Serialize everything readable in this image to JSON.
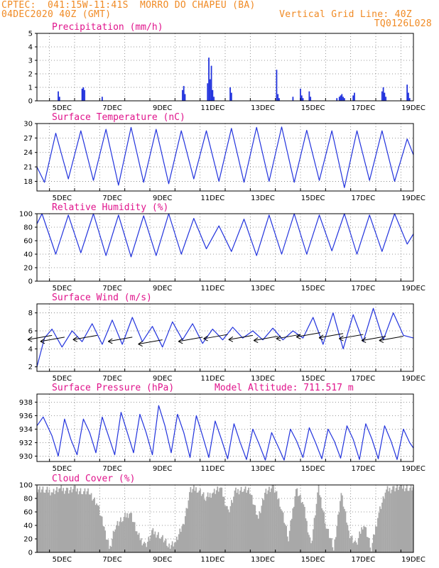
{
  "header": {
    "line1": "CPTEC:  041:15W-11:41S  MORRO DO CHAPEU (BA)",
    "line2": "04DEC2020 40Z (GMT)",
    "grid_note": "Vertical Grid Line: 40Z",
    "code": "TQ0126L028"
  },
  "colors": {
    "header": "#f08a24",
    "title": "#e0148c",
    "line": "#2233dd",
    "cloud": "#a8a8a8",
    "wind_arrow": "#000000"
  },
  "chart_data": [
    {
      "type": "bar",
      "title": "Precipitation (mm/h)",
      "ylim": [
        0,
        5
      ],
      "yticks": [
        0,
        1,
        2,
        3,
        4,
        5
      ],
      "x_ticks": [
        "5DEC",
        "7DEC",
        "9DEC",
        "11DEC",
        "13DEC",
        "15DEC",
        "17DEC",
        "19DEC"
      ],
      "grid": true,
      "x": [
        4.85,
        4.9,
        5.8,
        5.85,
        5.9,
        6.6,
        9.8,
        9.85,
        9.9,
        10.8,
        10.85,
        10.9,
        10.95,
        11.0,
        11.05,
        11.7,
        11.75,
        13.55,
        13.6,
        13.65,
        14.2,
        14.5,
        14.55,
        14.6,
        14.85,
        14.9,
        15.95,
        16.05,
        16.1,
        16.15,
        16.2,
        16.25,
        16.6,
        16.65,
        17.75,
        17.8,
        17.85,
        17.9,
        18.75,
        18.8,
        18.85
      ],
      "values": [
        0.7,
        0.3,
        0.9,
        1.0,
        0.8,
        0.3,
        0.8,
        1.1,
        0.5,
        1.3,
        3.2,
        1.6,
        2.6,
        0.8,
        0.3,
        1.0,
        0.6,
        2.3,
        0.5,
        0.2,
        0.3,
        0.9,
        0.4,
        0.2,
        0.7,
        0.3,
        0.2,
        0.3,
        0.4,
        0.5,
        0.3,
        0.2,
        0.4,
        0.6,
        0.7,
        1.0,
        0.6,
        0.3,
        1.2,
        0.6,
        0.2
      ]
    },
    {
      "type": "line",
      "title": "Surface Temperature (nC)",
      "ylim": [
        16,
        30
      ],
      "yticks": [
        18,
        21,
        24,
        27,
        30
      ],
      "x_ticks": [
        "5DEC",
        "7DEC",
        "9DEC",
        "11DEC",
        "13DEC",
        "15DEC",
        "17DEC",
        "19DEC"
      ],
      "grid": true,
      "x": [
        4.0,
        4.3,
        4.75,
        5.25,
        5.75,
        6.25,
        6.75,
        7.25,
        7.75,
        8.25,
        8.75,
        9.25,
        9.75,
        10.25,
        10.75,
        11.25,
        11.75,
        12.25,
        12.75,
        13.25,
        13.75,
        14.25,
        14.75,
        15.25,
        15.75,
        16.25,
        16.75,
        17.25,
        17.75,
        18.25,
        18.75,
        19.0
      ],
      "values": [
        21,
        17.8,
        28,
        18.5,
        28.5,
        18.2,
        28.8,
        17.2,
        29.2,
        17.8,
        28.8,
        17.5,
        28.5,
        18.5,
        28.5,
        18.0,
        29.0,
        17.8,
        29.2,
        18.0,
        29.3,
        17.8,
        28.6,
        18.2,
        28.5,
        16.7,
        28.5,
        18.2,
        28.5,
        18.0,
        26.8,
        23.5
      ]
    },
    {
      "type": "line",
      "title": "Relative Humidity (%)",
      "ylim": [
        0,
        100
      ],
      "yticks": [
        0,
        20,
        40,
        60,
        80,
        100
      ],
      "x_ticks": [
        "5DEC",
        "7DEC",
        "9DEC",
        "11DEC",
        "13DEC",
        "15DEC",
        "17DEC",
        "19DEC"
      ],
      "grid": true,
      "x": [
        4.0,
        4.2,
        4.75,
        5.25,
        5.75,
        6.25,
        6.75,
        7.25,
        7.75,
        8.25,
        8.75,
        9.25,
        9.75,
        10.25,
        10.75,
        11.25,
        11.75,
        12.25,
        12.75,
        13.25,
        13.75,
        14.25,
        14.75,
        15.25,
        15.75,
        16.25,
        16.75,
        17.25,
        17.75,
        18.25,
        18.75,
        19.0
      ],
      "values": [
        85,
        100,
        40,
        98,
        42,
        100,
        38,
        98,
        36,
        97,
        38,
        100,
        40,
        93,
        48,
        82,
        44,
        92,
        38,
        98,
        40,
        100,
        40,
        98,
        45,
        100,
        40,
        98,
        44,
        100,
        55,
        70
      ]
    },
    {
      "type": "line",
      "title": "Surface Wind (m/s)",
      "ylim": [
        1.5,
        9
      ],
      "yticks": [
        2,
        4,
        6,
        8
      ],
      "x_ticks": [
        "5DEC",
        "7DEC",
        "9DEC",
        "11DEC",
        "13DEC",
        "15DEC",
        "17DEC",
        "19DEC"
      ],
      "grid": true,
      "x": [
        4.0,
        4.3,
        4.6,
        5.0,
        5.4,
        5.8,
        6.2,
        6.6,
        7.0,
        7.4,
        7.8,
        8.2,
        8.6,
        9.0,
        9.4,
        9.8,
        10.2,
        10.6,
        11.0,
        11.4,
        11.8,
        12.2,
        12.6,
        13.0,
        13.4,
        13.8,
        14.2,
        14.6,
        15.0,
        15.4,
        15.8,
        16.2,
        16.6,
        17.0,
        17.4,
        17.8,
        18.2,
        18.6,
        19.0
      ],
      "values": [
        2.0,
        5.2,
        6.2,
        4.2,
        6.0,
        4.8,
        6.8,
        4.5,
        7.2,
        4.5,
        7.5,
        4.8,
        6.5,
        4.2,
        7.0,
        5.0,
        6.8,
        4.6,
        6.2,
        5.0,
        6.4,
        5.2,
        6.0,
        5.0,
        6.3,
        5.0,
        6.0,
        5.2,
        7.5,
        4.5,
        8.0,
        4.0,
        7.8,
        4.8,
        8.5,
        5.0,
        8.0,
        5.5,
        5.2
      ],
      "arrow_x": [
        4.6,
        5.1,
        6.4,
        7.8,
        9.0,
        10.6,
        11.6,
        12.6,
        13.6,
        14.5,
        15.3,
        16.2,
        17.0,
        17.9,
        18.6
      ],
      "arrow_y": [
        5.5,
        5.3,
        5.5,
        5.3,
        5.0,
        5.3,
        5.6,
        5.5,
        5.4,
        5.6,
        5.8,
        5.7,
        5.6,
        5.4,
        5.4
      ]
    },
    {
      "type": "line",
      "title": "Surface Pressure (hPa)",
      "subtitle": "Model Altitude: 711.517 m",
      "ylim": [
        929.2,
        939.2
      ],
      "yticks": [
        930,
        932,
        934,
        936,
        938
      ],
      "x_ticks": [
        "5DEC",
        "7DEC",
        "9DEC",
        "11DEC",
        "13DEC",
        "15DEC",
        "17DEC",
        "19DEC"
      ],
      "grid": true,
      "x": [
        4.0,
        4.25,
        4.6,
        4.85,
        5.1,
        5.35,
        5.6,
        5.85,
        6.1,
        6.35,
        6.6,
        6.85,
        7.1,
        7.35,
        7.6,
        7.85,
        8.1,
        8.35,
        8.6,
        8.85,
        9.1,
        9.35,
        9.6,
        9.85,
        10.1,
        10.35,
        10.6,
        10.85,
        11.1,
        11.35,
        11.6,
        11.85,
        12.1,
        12.35,
        12.6,
        12.85,
        13.1,
        13.35,
        13.6,
        13.85,
        14.1,
        14.35,
        14.6,
        14.85,
        15.1,
        15.35,
        15.6,
        15.85,
        16.1,
        16.35,
        16.6,
        16.85,
        17.1,
        17.35,
        17.6,
        17.85,
        18.1,
        18.35,
        18.6,
        18.85,
        19.0
      ],
      "values": [
        934.5,
        935.8,
        933.0,
        930.0,
        935.5,
        932.5,
        930.2,
        935.5,
        933.5,
        930.5,
        935.8,
        933.0,
        930.2,
        936.5,
        933.5,
        930.5,
        936.2,
        933.5,
        930.2,
        937.5,
        934.5,
        930.5,
        936.2,
        933.5,
        929.8,
        936.0,
        933.0,
        929.8,
        935.2,
        932.5,
        929.6,
        934.8,
        932.0,
        929.5,
        934.0,
        931.8,
        929.4,
        933.5,
        931.5,
        929.4,
        934.0,
        932.2,
        929.8,
        934.2,
        932.0,
        929.6,
        934.0,
        932.2,
        929.7,
        934.5,
        932.5,
        929.5,
        934.8,
        932.5,
        929.6,
        934.5,
        932.3,
        929.5,
        934.0,
        932.0,
        931.2
      ]
    },
    {
      "type": "area",
      "title": "Cloud Cover (%)",
      "ylim": [
        0,
        100
      ],
      "yticks": [
        0,
        20,
        40,
        60,
        80,
        100
      ],
      "x_ticks": [
        "5DEC",
        "7DEC",
        "9DEC",
        "11DEC",
        "13DEC",
        "15DEC",
        "17DEC",
        "19DEC"
      ],
      "grid": true,
      "x": [
        4.0,
        4.3,
        4.6,
        4.9,
        5.2,
        5.5,
        5.8,
        6.1,
        6.4,
        6.7,
        6.9,
        7.1,
        7.4,
        7.7,
        8.0,
        8.3,
        8.6,
        8.9,
        9.2,
        9.5,
        9.8,
        10.1,
        10.4,
        10.7,
        11.0,
        11.3,
        11.6,
        11.9,
        12.2,
        12.5,
        12.8,
        13.1,
        13.4,
        13.7,
        14.0,
        14.3,
        14.6,
        14.9,
        15.2,
        15.5,
        15.8,
        16.1,
        16.4,
        16.7,
        17.0,
        17.3,
        17.6,
        17.9,
        18.2,
        18.5,
        18.8,
        19.0
      ],
      "values": [
        95,
        92,
        90,
        94,
        92,
        93,
        91,
        88,
        70,
        30,
        5,
        40,
        50,
        60,
        25,
        10,
        30,
        25,
        10,
        15,
        40,
        92,
        95,
        80,
        90,
        95,
        60,
        90,
        95,
        88,
        50,
        92,
        96,
        70,
        20,
        95,
        70,
        10,
        95,
        40,
        5,
        88,
        30,
        10,
        45,
        5,
        60,
        92,
        95,
        97,
        96,
        95
      ]
    }
  ]
}
